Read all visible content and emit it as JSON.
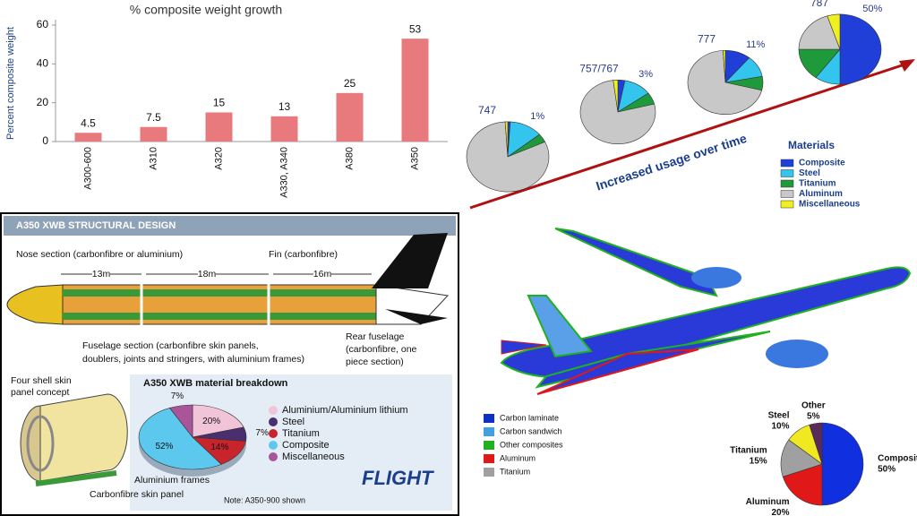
{
  "chart_data": [
    {
      "type": "bar",
      "title": "% composite weight growth",
      "y_label": "Percent composite weight",
      "categories": [
        "A300-600",
        "A310",
        "A320",
        "A330, A340",
        "A380",
        "A350"
      ],
      "values": [
        4.5,
        7.5,
        15,
        13,
        25,
        53
      ],
      "color": "#e8797c",
      "ylim": [
        0,
        60
      ],
      "yticks": [
        0,
        20,
        40,
        60
      ]
    },
    {
      "type": "multi-pie",
      "annotation": "Increased usage over time",
      "legend_title": "Materials",
      "categories": [
        "747",
        "757/767",
        "777",
        "787"
      ],
      "series": [
        {
          "name": "Composite",
          "color": "#1f3fd8",
          "values": [
            1,
            3,
            11,
            50
          ],
          "value_labels": [
            "1%",
            "3%",
            "11%",
            "50%"
          ]
        },
        {
          "name": "Steel",
          "color": "#33c5ee",
          "values": [
            13,
            12,
            11,
            10
          ]
        },
        {
          "name": "Titanium",
          "color": "#1f9a3a",
          "values": [
            4,
            6,
            7,
            15
          ]
        },
        {
          "name": "Aluminum",
          "color": "#c8c8c8",
          "values": [
            81,
            77,
            70,
            20
          ]
        },
        {
          "name": "Miscellaneous",
          "color": "#f0f020",
          "values": [
            1,
            2,
            1,
            5
          ]
        }
      ]
    },
    {
      "type": "pie",
      "title": "A350 XWB material breakdown",
      "categories": [
        "Aluminium/Aluminium lithium",
        "Steel",
        "Titanium",
        "Composite",
        "Miscellaneous"
      ],
      "values": [
        20,
        7,
        14,
        52,
        7
      ],
      "value_labels": [
        "20%",
        "7%",
        "14%",
        "52%",
        "7%"
      ],
      "colors": [
        "#f2c4d8",
        "#4a2f6e",
        "#c8242c",
        "#5cc8ee",
        "#a8559a"
      ]
    },
    {
      "type": "pie-outside-labels",
      "categories": [
        "Composites",
        "Aluminum",
        "Titanium",
        "Steel",
        "Other"
      ],
      "values": [
        50,
        20,
        15,
        10,
        5
      ],
      "value_labels": [
        "50%",
        "20%",
        "15%",
        "10%",
        "5%"
      ],
      "colors": [
        "#1030e0",
        "#e01818",
        "#a0a0a0",
        "#f0e820",
        "#5a2a5a"
      ]
    }
  ],
  "structural": {
    "title": "A350 XWB STRUCTURAL DESIGN",
    "nose": "Nose section (carbonfibre or aluminium)",
    "fin": "Fin (carbonfibre)",
    "lengths": [
      "13m",
      "18m",
      "16m"
    ],
    "fuselage": [
      "Fuselage section (carbonfibre skin panels,",
      "doublers, joints and stringers, with aluminium frames)"
    ],
    "rear": [
      "Rear fuselage",
      "(carbonfibre, one",
      "piece section)"
    ],
    "shell": [
      "Four shell skin",
      "panel concept"
    ],
    "frames": "Aluminium frames",
    "skin": "Carbonfibre skin panel",
    "note": "Note: A350-900 shown",
    "logo": "FLIGHT"
  },
  "aircraft_legend": [
    {
      "label": "Carbon laminate",
      "color": "#1030c0"
    },
    {
      "label": "Carbon sandwich",
      "color": "#40a0e0"
    },
    {
      "label": "Other composites",
      "color": "#20b020"
    },
    {
      "label": "Aluminum",
      "color": "#e01818"
    },
    {
      "label": "Titanium",
      "color": "#a0a0a0"
    }
  ]
}
